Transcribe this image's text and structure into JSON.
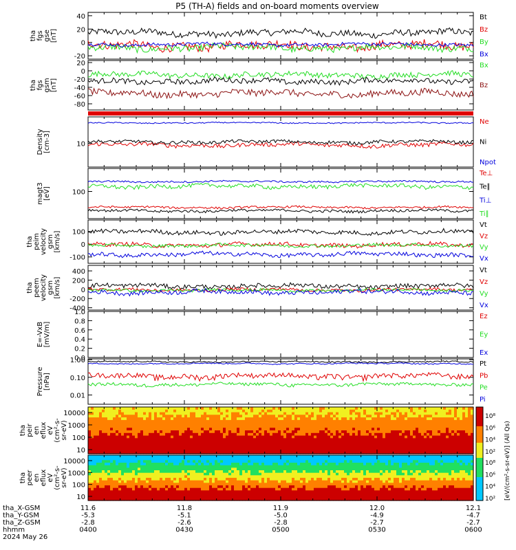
{
  "chart_data": {
    "type": "line",
    "title": "P5 (TH-A) fields and on-board moments overview",
    "date": "2024 May 26",
    "colors": {
      "black": "#000000",
      "red": "#e00000",
      "green": "#22dd22",
      "blue": "#0000dd",
      "darkred": "#8b1010"
    },
    "panels": [
      {
        "id": "fgs-gse",
        "ylabel": [
          "tha",
          "fgs",
          "gse",
          "[nT]"
        ],
        "yrange": [
          -25,
          45
        ],
        "ticks": [
          "40",
          "20",
          "0",
          "-20"
        ],
        "tick_values": [
          40,
          20,
          0,
          -20
        ],
        "series": [
          {
            "name": "Bt",
            "color": "#000000",
            "base": 14,
            "amp": 6
          },
          {
            "name": "Bz",
            "color": "#e00000",
            "base": -5,
            "amp": 8
          },
          {
            "name": "By",
            "color": "#22dd22",
            "base": -8,
            "amp": 6
          },
          {
            "name": "Bx",
            "color": "#0000dd",
            "base": -3,
            "amp": 3
          }
        ]
      },
      {
        "id": "fgs-gsm",
        "ylabel": [
          "tha",
          "fgs",
          "gsm",
          "[nT]"
        ],
        "yrange": [
          -95,
          25
        ],
        "ticks": [
          "20",
          "0",
          "-20",
          "-40",
          "-60",
          "-80"
        ],
        "tick_values": [
          20,
          0,
          -20,
          -40,
          -60,
          -80
        ],
        "series": [
          {
            "name": "Bx",
            "color": "#22dd22",
            "base": -10,
            "amp": 8
          },
          {
            "name": "Bz",
            "color": "#8b1010",
            "base": -55,
            "amp": 10
          },
          {
            "name": "",
            "color": "#000000",
            "base": -25,
            "amp": 8
          }
        ]
      },
      {
        "id": "density",
        "ylabel": [
          "Density",
          "[cm-3]"
        ],
        "yrange": [
          2,
          60
        ],
        "log": true,
        "ticks": [
          "10"
        ],
        "tick_values": [
          10
        ],
        "series": [
          {
            "name": "Ne",
            "color": "#e00000",
            "base": 9,
            "amp": 1.5
          },
          {
            "name": "Ni",
            "color": "#000000",
            "base": 11,
            "amp": 1.5
          },
          {
            "name": "Npot",
            "color": "#0000dd",
            "base": 40,
            "amp": 2
          }
        ]
      },
      {
        "id": "temperature",
        "ylabel": [
          "magt3",
          "[eV]"
        ],
        "yrange": [
          15,
          500
        ],
        "log": true,
        "ticks": [
          "100"
        ],
        "tick_values": [
          100
        ],
        "series": [
          {
            "name": "Te⊥",
            "color": "#e00000",
            "base": 33,
            "amp": 3
          },
          {
            "name": "Te∥",
            "color": "#000000",
            "base": 26,
            "amp": 3
          },
          {
            "name": "Ti⊥",
            "color": "#0000dd",
            "base": 200,
            "amp": 15
          },
          {
            "name": "Ti∥",
            "color": "#22dd22",
            "base": 145,
            "amp": 25
          }
        ]
      },
      {
        "id": "peim",
        "ylabel": [
          "tha",
          "peim",
          "velocity",
          "gsm",
          "[km/s]"
        ],
        "yrange": [
          -150,
          190
        ],
        "ticks": [
          "100",
          "0",
          "-100"
        ],
        "tick_values": [
          100,
          0,
          -100
        ],
        "series": [
          {
            "name": "Vt",
            "color": "#000000",
            "base": 95,
            "amp": 20
          },
          {
            "name": "Vz",
            "color": "#e00000",
            "base": -5,
            "amp": 20
          },
          {
            "name": "Vy",
            "color": "#22dd22",
            "base": -10,
            "amp": 15
          },
          {
            "name": "Vx",
            "color": "#0000dd",
            "base": -80,
            "amp": 20
          }
        ]
      },
      {
        "id": "peem",
        "ylabel": [
          "tha",
          "peem",
          "velocity",
          "gsm",
          "[km/s]"
        ],
        "yrange": [
          -450,
          520
        ],
        "ticks": [
          "400",
          "200",
          "0",
          "-200",
          "-400"
        ],
        "tick_values": [
          400,
          200,
          0,
          -200,
          -400
        ],
        "series": [
          {
            "name": "Vt",
            "color": "#000000",
            "base": 70,
            "amp": 60
          },
          {
            "name": "Vz",
            "color": "#e00000",
            "base": -10,
            "amp": 40
          },
          {
            "name": "Vy",
            "color": "#22dd22",
            "base": -20,
            "amp": 35
          },
          {
            "name": "Vx",
            "color": "#0000dd",
            "base": -60,
            "amp": 60
          }
        ]
      },
      {
        "id": "efield",
        "ylabel": [
          "E=-VxB",
          "[mV/m]"
        ],
        "yrange": [
          0,
          1
        ],
        "ticks": [
          "1.0",
          "0.8",
          "0.6",
          "0.4",
          "0.2",
          "0.0"
        ],
        "tick_values": [
          1,
          0.8,
          0.6,
          0.4,
          0.2,
          0
        ],
        "series": [
          {
            "name": "Ez",
            "color": "#e00000"
          },
          {
            "name": "Ey",
            "color": "#22dd22"
          },
          {
            "name": "Ex",
            "color": "#0000dd"
          }
        ]
      },
      {
        "id": "pressure",
        "ylabel": [
          "Pressure",
          "[nPa]"
        ],
        "yrange": [
          0.003,
          1.1
        ],
        "log": true,
        "ticks": [
          "1.00",
          "0.10",
          "0.01"
        ],
        "tick_values": [
          1,
          0.1,
          0.01
        ],
        "series": [
          {
            "name": "Pt",
            "color": "#000000",
            "base": 0.75,
            "amp": 0.08
          },
          {
            "name": "Pb",
            "color": "#e00000",
            "base": 0.12,
            "amp": 0.05
          },
          {
            "name": "Pe",
            "color": "#22dd22",
            "base": 0.04,
            "amp": 0.01
          },
          {
            "name": "Pi",
            "color": "#0000dd",
            "base": 0.6,
            "amp": 0.06
          }
        ]
      }
    ],
    "spectrograms": [
      {
        "id": "peir",
        "ylabel": [
          "tha",
          "peir",
          "en",
          "eflux",
          "eV",
          "(cm²-s-",
          "sr-eV)"
        ],
        "ticks": [
          "10000",
          "1000",
          "100",
          "10"
        ],
        "tick_values": [
          10000,
          1000,
          100,
          10
        ]
      },
      {
        "id": "peer",
        "ylabel": [
          "tha",
          "peer",
          "en",
          "eflux",
          "eV",
          "(cm²-s-",
          "sr-eV)"
        ],
        "ticks": [
          "10000",
          "1000",
          "100",
          "10"
        ],
        "tick_values": [
          10000,
          1000,
          100,
          10
        ]
      }
    ],
    "colorbar": {
      "label": "[eV/(cm²-s-sr-eV)] (All Qs)",
      "ticks": [
        "10⁸",
        "10⁶",
        "10⁴",
        "10²"
      ]
    },
    "x_axis": {
      "ticks": [
        "0400",
        "0430",
        "0500",
        "0530",
        "0600"
      ],
      "rows": [
        {
          "label": "tha_X-GSM",
          "values": [
            "11.6",
            "11.8",
            "11.9",
            "12.0",
            "12.1"
          ]
        },
        {
          "label": "tha_Y-GSM",
          "values": [
            "-5.3",
            "-5.1",
            "-5.0",
            "-4.9",
            "-4.7"
          ]
        },
        {
          "label": "tha_Z-GSM",
          "values": [
            "-2.8",
            "-2.6",
            "-2.8",
            "-2.7",
            "-2.7"
          ]
        },
        {
          "label": "hhmm",
          "values": [
            "0400",
            "0430",
            "0500",
            "0530",
            "0600"
          ]
        }
      ]
    }
  }
}
